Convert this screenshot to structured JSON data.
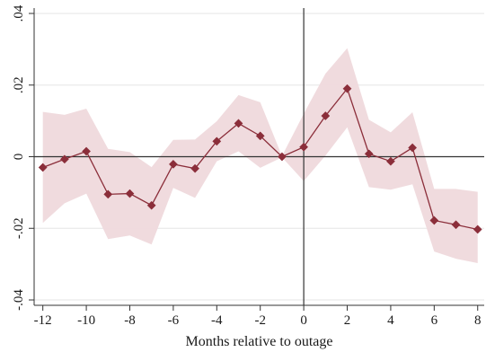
{
  "chart_data": {
    "type": "line",
    "title": "",
    "xlabel": "Months relative to outage",
    "ylabel": "",
    "x": [
      -12,
      -11,
      -10,
      -9,
      -8,
      -7,
      -6,
      -5,
      -4,
      -3,
      -2,
      -1,
      0,
      1,
      2,
      3,
      4,
      5,
      6,
      7,
      8
    ],
    "series": [
      {
        "values": [
          -0.003,
          -0.0007,
          0.0015,
          -0.0105,
          -0.0103,
          -0.0136,
          -0.0021,
          -0.0033,
          0.0043,
          0.0093,
          0.0058,
          0.0,
          0.0027,
          0.0114,
          0.019,
          0.0008,
          -0.0013,
          0.0025,
          -0.0178,
          -0.019,
          -0.0203
        ],
        "ci_lower": [
          -0.0185,
          -0.013,
          -0.0103,
          -0.023,
          -0.022,
          -0.0245,
          -0.0087,
          -0.0115,
          -0.0013,
          0.0015,
          -0.0031,
          -0.0002,
          -0.0068,
          0.0003,
          0.0082,
          -0.0085,
          -0.0092,
          -0.0077,
          -0.0265,
          -0.0285,
          -0.0297
        ],
        "ci_upper": [
          0.0125,
          0.0117,
          0.0134,
          0.0022,
          0.0013,
          -0.0029,
          0.0047,
          0.0048,
          0.0099,
          0.0172,
          0.0152,
          0.0002,
          0.012,
          0.0232,
          0.0303,
          0.0103,
          0.0068,
          0.0124,
          -0.009,
          -0.009,
          -0.0098
        ]
      }
    ],
    "xlim": [
      -12.4,
      8.3
    ],
    "ylim": [
      -0.0415,
      0.0415
    ],
    "xticks": [
      -12,
      -10,
      -8,
      -6,
      -4,
      -2,
      0,
      2,
      4,
      6,
      8
    ],
    "xtick_labels": [
      "-12",
      "-10",
      "-8",
      "-6",
      "-4",
      "-2",
      "0",
      "2",
      "4",
      "6",
      "8"
    ],
    "yticks": [
      -0.04,
      -0.02,
      0,
      0.02,
      0.04
    ],
    "ytick_labels": [
      "-.04",
      "-.02",
      "0",
      ".02",
      ".04"
    ],
    "reference_lines": {
      "x": 0,
      "y": 0
    },
    "grid": true,
    "colors": {
      "line": "#8b2e3a",
      "marker": "#8b2e3a",
      "ci_band": "#efd9dc",
      "grid": "#e6e6e6",
      "axis": "#333333",
      "reference": "#333333"
    }
  }
}
